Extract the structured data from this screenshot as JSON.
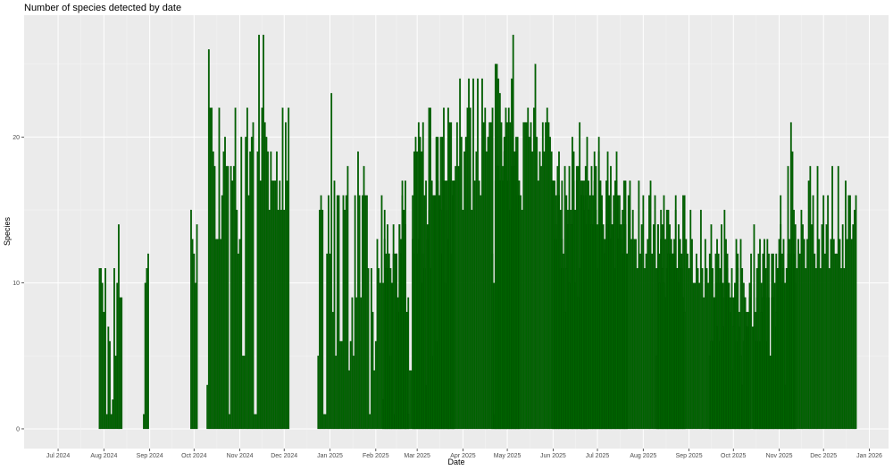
{
  "chart_data": {
    "type": "bar",
    "title": "Number of species detected by date",
    "xlabel": "Date",
    "ylabel": "Species",
    "ylim": [
      -1.35,
      28.35
    ],
    "xlim": [
      "2024-06-08",
      "2026-01-14"
    ],
    "yticks": [
      0,
      10,
      20
    ],
    "xticks": [
      {
        "date": "2024-07-01",
        "label": "Jul 2024"
      },
      {
        "date": "2024-08-01",
        "label": "Aug 2024"
      },
      {
        "date": "2024-09-01",
        "label": "Sep 2024"
      },
      {
        "date": "2024-10-01",
        "label": "Oct 2024"
      },
      {
        "date": "2024-11-01",
        "label": "Nov 2024"
      },
      {
        "date": "2024-12-01",
        "label": "Dec 2024"
      },
      {
        "date": "2025-01-01",
        "label": "Jan 2025"
      },
      {
        "date": "2025-02-01",
        "label": "Feb 2025"
      },
      {
        "date": "2025-03-01",
        "label": "Mar 2025"
      },
      {
        "date": "2025-04-01",
        "label": "Apr 2025"
      },
      {
        "date": "2025-05-01",
        "label": "May 2025"
      },
      {
        "date": "2025-06-01",
        "label": "Jun 2025"
      },
      {
        "date": "2025-07-01",
        "label": "Jul 2025"
      },
      {
        "date": "2025-08-01",
        "label": "Aug 2025"
      },
      {
        "date": "2025-09-01",
        "label": "Sep 2025"
      },
      {
        "date": "2025-10-01",
        "label": "Oct 2025"
      },
      {
        "date": "2025-11-01",
        "label": "Nov 2025"
      },
      {
        "date": "2025-12-01",
        "label": "Dec 2025"
      },
      {
        "date": "2026-01-01",
        "label": "Jan 2026"
      }
    ],
    "grid": true,
    "bar_color": "#006400",
    "panel_color": "#ebebeb",
    "series": [
      {
        "segments": [
          {
            "start": "2024-07-29",
            "values": [
              11,
              11,
              10,
              8,
              11,
              1,
              7,
              6,
              1,
              2,
              11,
              5,
              10,
              14,
              9,
              9
            ]
          },
          {
            "start": "2024-08-28",
            "values": [
              1,
              10,
              11,
              12
            ]
          },
          {
            "start": "2024-09-29",
            "values": [
              15,
              13,
              12,
              10,
              14
            ]
          },
          {
            "start": "2024-10-10",
            "values": [
              3,
              26,
              22,
              22,
              19,
              18,
              13,
              13,
              22,
              13,
              16,
              19,
              20,
              18,
              18,
              1,
              18,
              17,
              18,
              22,
              15,
              12,
              13,
              20,
              5,
              5,
              20,
              22,
              16,
              19,
              20,
              21,
              1,
              1,
              19,
              27,
              17,
              22,
              27,
              21,
              20,
              19,
              15,
              19,
              17,
              17,
              17,
              19,
              15,
              17,
              15,
              22,
              15,
              21,
              17,
              22
            ]
          },
          {
            "start": "2024-12-24",
            "values": [
              5,
              15,
              16,
              15,
              1,
              1,
              12,
              16,
              12,
              23,
              8,
              17,
              5,
              16,
              16,
              6,
              6,
              16,
              15,
              16,
              18,
              4,
              6,
              9,
              5,
              16,
              9,
              19,
              16,
              9,
              16,
              18,
              16,
              16,
              11,
              1,
              11,
              8,
              4,
              6,
              13,
              11,
              10,
              16,
              10,
              15,
              12,
              11,
              12,
              5,
              10,
              14,
              1,
              12,
              8,
              14,
              13,
              16,
              8,
              17,
              8,
              9,
              4,
              4,
              16,
              12,
              19,
              12,
              13,
              19,
              10,
              12,
              11,
              3,
              13,
              15,
              11,
              5,
              16,
              16,
              6,
              17,
              16,
              20,
              12,
              17,
              10,
              15,
              13,
              17,
              12,
              16,
              17
            ]
          },
          {
            "start": "2025-02-06",
            "values": [
              2,
              13,
              11,
              14,
              12,
              11,
              10,
              12,
              12,
              12,
              9,
              14,
              12,
              17,
              15,
              14,
              8,
              1
            ]
          },
          {
            "start": "2025-02-26",
            "values": [
              13,
              19,
              20,
              19,
              21,
              20,
              19,
              21,
              16,
              17,
              14,
              22,
              22,
              17,
              16,
              16,
              20,
              20,
              16,
              15,
              20,
              22,
              17,
              17,
              22,
              21,
              21,
              17,
              17,
              18,
              21,
              18,
              24,
              20,
              15,
              19,
              20,
              22,
              24,
              22,
              15,
              24,
              17,
              19,
              24,
              17,
              16,
              24,
              21,
              22,
              19,
              20,
              21,
              21,
              12,
              1,
              17,
              25,
              24,
              23,
              17,
              17,
              20,
              21,
              17,
              17,
              15,
              18,
              19,
              19,
              20,
              16,
              17
            ]
          },
          {
            "start": "2025-04-21",
            "values": [
              22,
              10,
              25,
              18,
              18,
              17,
              21,
              18,
              19,
              22,
              21,
              22,
              21,
              24,
              27,
              18,
              19,
              20,
              17,
              16,
              15,
              21,
              21,
              21,
              22,
              20,
              21,
              19,
              22,
              25,
              20,
              17,
              19,
              18,
              21,
              19,
              21,
              22,
              21,
              20,
              19,
              17,
              13,
              16,
              13,
              19,
              11,
              17,
              11,
              18,
              16,
              15,
              18,
              15,
              20,
              17,
              15,
              17,
              18,
              11,
              17,
              11,
              15,
              14,
              11
            ]
          },
          {
            "start": "2025-06-01",
            "values": [
              17,
              17,
              14,
              18,
              16,
              15,
              13,
              12,
              8,
              11,
              14,
              10,
              14,
              14,
              19,
              10,
              18,
              9,
              21,
              10,
              16,
              10,
              16,
              14,
              17,
              15,
              18,
              14,
              17,
              15,
              11,
              20,
              17,
              16,
              14,
              13,
              17,
              19,
              14,
              18,
              14,
              16,
              11,
              19,
              16,
              14,
              13,
              15,
              17,
              14,
              12
            ]
          },
          {
            "start": "2025-06-20",
            "values": [
              16,
              17,
              17,
              18,
              20,
              15,
              16,
              14,
              16,
              19,
              18,
              14,
              19,
              17,
              15,
              13,
              12,
              14,
              17,
              16,
              13,
              14,
              14,
              17,
              17,
              13,
              16,
              14,
              12,
              14,
              17,
              12,
              16,
              17,
              13,
              15,
              13,
              13,
              11,
              17,
              12,
              14,
              16,
              11,
              12,
              13,
              16,
              17,
              12,
              14,
              16,
              11,
              14,
              12,
              15,
              14,
              16,
              13,
              11,
              15,
              12,
              11,
              12,
              13,
              16,
              11,
              14,
              12,
              11,
              16,
              16
            ]
          },
          {
            "start": "2025-08-10",
            "values": [
              5,
              14,
              10,
              13,
              11,
              10,
              9,
              15,
              12,
              14,
              13,
              12,
              12,
              15,
              11,
              10,
              13,
              12,
              9,
              8,
              13,
              12,
              11,
              15,
              13,
              10,
              10,
              12,
              11,
              10,
              15,
              11,
              9,
              13,
              11,
              10,
              12,
              14,
              11,
              9,
              12,
              13,
              10,
              11,
              14,
              10,
              9,
              12,
              11,
              10,
              8,
              11,
              9,
              10,
              6,
              12,
              7,
              13,
              11,
              10,
              9,
              8,
              7,
              10
            ]
          },
          {
            "start": "2025-09-15",
            "values": [
              5,
              6,
              6,
              9,
              10,
              7,
              12,
              6,
              10,
              7,
              15,
              13,
              12,
              10,
              9,
              4,
              7,
              9,
              13,
              11,
              8,
              5,
              3,
              6,
              9,
              7,
              8,
              9,
              12,
              7,
              14,
              8,
              9,
              6,
              6,
              10,
              12,
              13,
              6,
              9,
              9,
              5,
              9,
              12,
              7,
              12,
              11,
              13,
              16,
              12,
              13,
              10,
              11,
              12,
              11,
              12,
              13,
              12,
              10
            ]
          },
          {
            "start": "2025-10-15",
            "values": [
              7,
              6,
              11,
              12,
              13,
              8,
              9,
              12,
              11,
              13,
              12,
              5,
              12,
              9,
              10,
              8,
              11,
              12,
              14,
              10,
              11,
              3,
              11,
              18,
              13,
              21,
              19,
              15,
              14,
              11,
              13,
              12,
              15,
              14,
              13,
              11,
              13,
              17,
              18,
              14,
              16,
              12,
              11,
              18,
              13,
              11,
              14,
              16,
              12,
              14,
              16,
              11,
              13,
              18,
              13,
              12,
              12,
              18,
              13,
              11,
              14,
              11,
              17,
              13,
              16,
              16,
              13,
              14,
              15,
              16
            ]
          }
        ]
      }
    ]
  }
}
